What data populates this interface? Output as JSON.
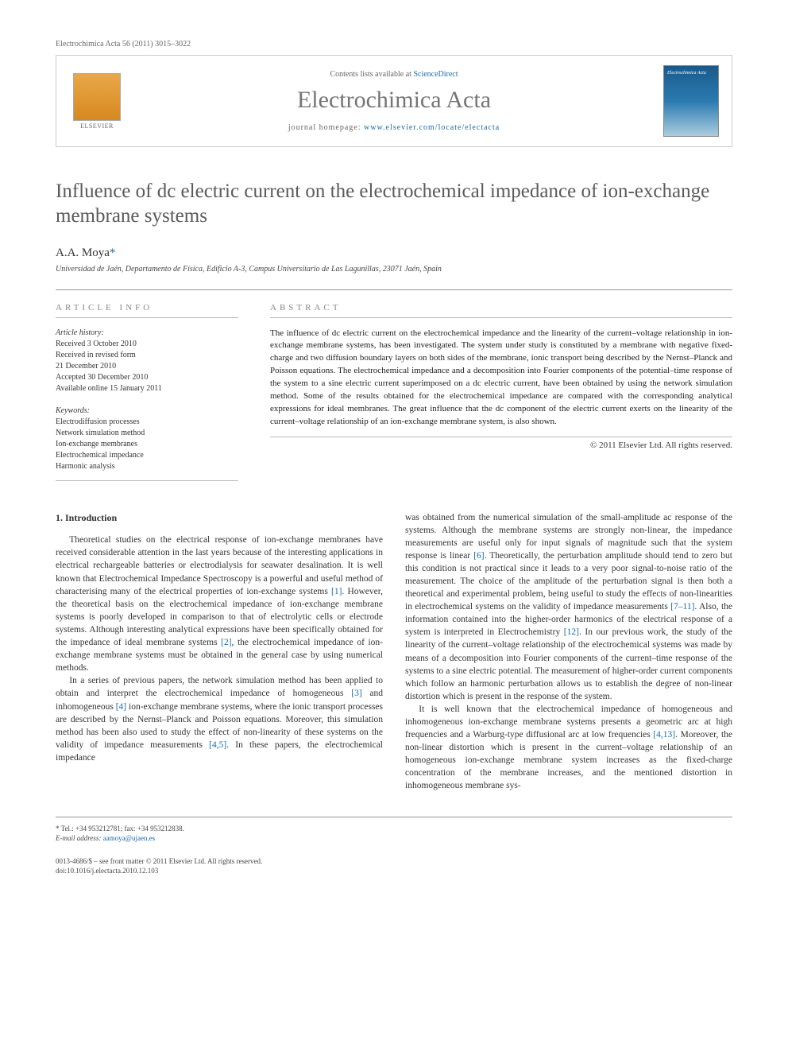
{
  "header": {
    "journal_ref": "Electrochimica Acta 56 (2011) 3015–3022",
    "contents_prefix": "Contents lists available at ",
    "contents_link": "ScienceDirect",
    "journal_name": "Electrochimica Acta",
    "homepage_prefix": "journal homepage: ",
    "homepage_url": "www.elsevier.com/locate/electacta",
    "publisher": "ELSEVIER"
  },
  "article": {
    "title": "Influence of dc electric current on the electrochemical impedance of ion-exchange membrane systems",
    "author": "A.A. Moya",
    "author_marker": "*",
    "affiliation": "Universidad de Jaén, Departamento de Física, Edificio A-3, Campus Universitario de Las Lagunillas, 23071 Jaén, Spain"
  },
  "info": {
    "section_label": "article info",
    "history_label": "Article history:",
    "received": "Received 3 October 2010",
    "revised": "Received in revised form",
    "revised_date": "21 December 2010",
    "accepted": "Accepted 30 December 2010",
    "online": "Available online 15 January 2011",
    "keywords_label": "Keywords:",
    "keywords": [
      "Electrodiffusion processes",
      "Network simulation method",
      "Ion-exchange membranes",
      "Electrochemical impedance",
      "Harmonic analysis"
    ]
  },
  "abstract": {
    "section_label": "abstract",
    "text": "The influence of dc electric current on the electrochemical impedance and the linearity of the current–voltage relationship in ion-exchange membrane systems, has been investigated. The system under study is constituted by a membrane with negative fixed-charge and two diffusion boundary layers on both sides of the membrane, ionic transport being described by the Nernst–Planck and Poisson equations. The electrochemical impedance and a decomposition into Fourier components of the potential–time response of the system to a sine electric current superimposed on a dc electric current, have been obtained by using the network simulation method. Some of the results obtained for the electrochemical impedance are compared with the corresponding analytical expressions for ideal membranes. The great influence that the dc component of the electric current exerts on the linearity of the current–voltage relationship of an ion-exchange membrane system, is also shown.",
    "copyright": "© 2011 Elsevier Ltd. All rights reserved."
  },
  "body": {
    "section_heading": "1. Introduction",
    "col1_p1": "Theoretical studies on the electrical response of ion-exchange membranes have received considerable attention in the last years because of the interesting applications in electrical rechargeable batteries or electrodialysis for seawater desalination. It is well known that Electrochemical Impedance Spectroscopy is a powerful and useful method of characterising many of the electrical properties of ion-exchange systems [1]. However, the theoretical basis on the electrochemical impedance of ion-exchange membrane systems is poorly developed in comparison to that of electrolytic cells or electrode systems. Although interesting analytical expressions have been specifically obtained for the impedance of ideal membrane systems [2], the electrochemical impedance of ion-exchange membrane systems must be obtained in the general case by using numerical methods.",
    "col1_p2": "In a series of previous papers, the network simulation method has been applied to obtain and interpret the electrochemical impedance of homogeneous [3] and inhomogeneous [4] ion-exchange membrane systems, where the ionic transport processes are described by the Nernst–Planck and Poisson equations. Moreover, this simulation method has been also used to study the effect of non-linearity of these systems on the validity of impedance measurements [4,5]. In these papers, the electrochemical impedance",
    "col2_p1": "was obtained from the numerical simulation of the small-amplitude ac response of the systems. Although the membrane systems are strongly non-linear, the impedance measurements are useful only for input signals of magnitude such that the system response is linear [6]. Theoretically, the perturbation amplitude should tend to zero but this condition is not practical since it leads to a very poor signal-to-noise ratio of the measurement. The choice of the amplitude of the perturbation signal is then both a theoretical and experimental problem, being useful to study the effects of non-linearities in electrochemical systems on the validity of impedance measurements [7–11]. Also, the information contained into the higher-order harmonics of the electrical response of a system is interpreted in Electrochemistry [12]. In our previous work, the study of the linearity of the current–voltage relationship of the electrochemical systems was made by means of a decomposition into Fourier components of the current–time response of the systems to a sine electric potential. The measurement of higher-order current components which follow an harmonic perturbation allows us to establish the degree of non-linear distortion which is present in the response of the system.",
    "col2_p2": "It is well known that the electrochemical impedance of homogeneous and inhomogeneous ion-exchange membrane systems presents a geometric arc at high frequencies and a Warburg-type diffusional arc at low frequencies [4,13]. Moreover, the non-linear distortion which is present in the current–voltage relationship of an homogeneous ion-exchange membrane system increases as the fixed-charge concentration of the membrane increases, and the mentioned distortion in inhomogeneous membrane sys-"
  },
  "footer": {
    "corr_marker": "*",
    "tel": "Tel.: +34 953212781; fax: +34 953212838.",
    "email_label": "E-mail address: ",
    "email": "aamoya@ujaen.es",
    "issn": "0013-4686/$ – see front matter © 2011 Elsevier Ltd. All rights reserved.",
    "doi": "doi:10.1016/j.electacta.2010.12.103"
  },
  "refs": {
    "r1": "[1]",
    "r2": "[2]",
    "r3": "[3]",
    "r4": "[4]",
    "r45": "[4,5]",
    "r6": "[6]",
    "r711": "[7–11]",
    "r12": "[12]",
    "r413": "[4,13]"
  }
}
